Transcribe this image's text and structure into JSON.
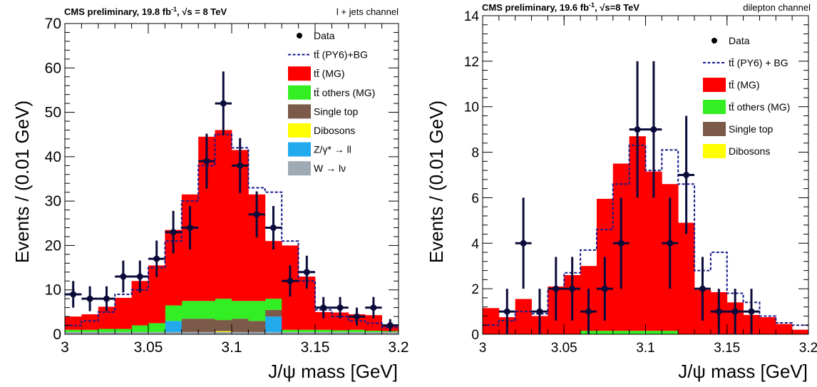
{
  "chart_data": [
    {
      "type": "stacked-histogram",
      "header": "CMS preliminary, 19.8 fb",
      "header_sup": "-1",
      "header_energy": "√s = 8 TeV",
      "channel": "l + jets channel",
      "ylabel": "Events / (0.01 GeV)",
      "xlabel": "J/ψ mass [GeV]",
      "xlim": [
        3.0,
        3.2
      ],
      "ylim": [
        0,
        70
      ],
      "xticks": [
        "3",
        "3.05",
        "3.1",
        "3.15",
        "3.2"
      ],
      "yticks": [
        "0",
        "10",
        "20",
        "30",
        "40",
        "50",
        "60",
        "70"
      ],
      "bin_width": 0.01,
      "bin_start": 3.0,
      "legend": [
        {
          "label": "Data",
          "kind": "marker",
          "color": "#000000"
        },
        {
          "label": "tt̄ (PY6)+BG",
          "kind": "dashed",
          "color": "#1a1a8c"
        },
        {
          "label": "tt̄ (MG)",
          "kind": "box",
          "color": "#ff0000"
        },
        {
          "label": "tt̄ others (MG)",
          "kind": "box",
          "color": "#33ee22"
        },
        {
          "label": "Single top",
          "kind": "box",
          "color": "#7b5a4a"
        },
        {
          "label": "Dibosons",
          "kind": "box",
          "color": "#ffff00"
        },
        {
          "label": "Z/γ* → ll",
          "kind": "box",
          "color": "#22aaee"
        },
        {
          "label": "W → lν",
          "kind": "box",
          "color": "#a0aab4"
        }
      ],
      "stack_series": [
        {
          "name": "W → lν",
          "color": "#a0aab4",
          "values": [
            0.5,
            0.5,
            0.5,
            0.5,
            0.5,
            0.5,
            0.5,
            0.5,
            0.5,
            0.5,
            0.5,
            0.5,
            0.5,
            0.5,
            0.5,
            0.5,
            0.5,
            0.5,
            0.5,
            0.5
          ]
        },
        {
          "name": "Z/γ* → ll",
          "color": "#22aaee",
          "values": [
            0,
            0,
            0,
            0,
            0,
            0,
            2.5,
            0,
            0,
            0,
            0,
            0,
            3.5,
            0,
            0,
            0,
            0,
            0,
            0,
            0
          ]
        },
        {
          "name": "Dibosons",
          "color": "#ffff00",
          "values": [
            0,
            0,
            0,
            0,
            0,
            0,
            0,
            0,
            0,
            0.2,
            0,
            0,
            0,
            0,
            0,
            0,
            0,
            0,
            0,
            0
          ]
        },
        {
          "name": "Single top",
          "color": "#7b5a4a",
          "values": [
            0,
            0,
            0,
            0,
            0,
            0,
            0,
            3,
            3,
            2.5,
            3,
            2.5,
            1.5,
            0,
            0,
            0,
            0,
            0,
            0,
            0
          ]
        },
        {
          "name": "tt̄ others (MG)",
          "color": "#33ee22",
          "values": [
            0.5,
            0.5,
            0.7,
            0.7,
            1.5,
            2,
            3.5,
            4,
            4,
            4.8,
            4,
            4.5,
            2.5,
            0.5,
            0.5,
            0.5,
            0.4,
            0.5,
            0.3,
            0.2
          ]
        },
        {
          "name": "tt̄ (MG)",
          "color": "#ff0000",
          "values": [
            3,
            3.5,
            5,
            7,
            10,
            13,
            17,
            24,
            37,
            38,
            34,
            24,
            13,
            19,
            12,
            4,
            4,
            3.5,
            3.5,
            1.5
          ]
        }
      ],
      "dashed_series": {
        "name": "tt̄ (PY6)+BG",
        "color": "#1a1a8c",
        "values": [
          2,
          3,
          5,
          9,
          10,
          15,
          21,
          30,
          38,
          45,
          42,
          33,
          32,
          21,
          12,
          5.5,
          4,
          3,
          2.5,
          1.5
        ]
      },
      "data_points": {
        "x": [
          3.005,
          3.015,
          3.025,
          3.035,
          3.045,
          3.055,
          3.065,
          3.075,
          3.085,
          3.095,
          3.105,
          3.115,
          3.125,
          3.135,
          3.145,
          3.155,
          3.165,
          3.175,
          3.185,
          3.195
        ],
        "y": [
          9,
          8,
          8,
          13,
          13,
          17,
          23,
          24,
          39,
          52,
          38,
          27,
          24,
          12,
          14,
          6,
          6,
          4,
          6,
          2
        ],
        "yerr": [
          3,
          2.8,
          2.8,
          3.6,
          3.6,
          4.1,
          4.8,
          4.9,
          6.2,
          7.2,
          6.2,
          5.2,
          4.9,
          3.5,
          3.7,
          2.4,
          2.4,
          2,
          2.4,
          1.4
        ]
      }
    },
    {
      "type": "stacked-histogram",
      "header": "CMS preliminary, 19.6 fb",
      "header_sup": "-1",
      "header_energy": "√s=8 TeV",
      "channel": "dilepton channel",
      "ylabel": "Events / (0.01 GeV)",
      "xlabel": "J/ψ mass [GeV]",
      "xlim": [
        3.0,
        3.2
      ],
      "ylim": [
        0,
        14
      ],
      "xticks": [
        "3",
        "3.05",
        "3.1",
        "3.15",
        "3.2"
      ],
      "yticks": [
        "0",
        "2",
        "4",
        "6",
        "8",
        "10",
        "12",
        "14"
      ],
      "bin_width": 0.01,
      "bin_start": 3.0,
      "legend": [
        {
          "label": "Data",
          "kind": "marker",
          "color": "#000000"
        },
        {
          "label": "tt̄ (PY6) + BG",
          "kind": "dashed",
          "color": "#1a1a8c"
        },
        {
          "label": "tt̄ (MG)",
          "kind": "box",
          "color": "#ff0000"
        },
        {
          "label": "tt̄ others (MG)",
          "kind": "box",
          "color": "#33ee22"
        },
        {
          "label": "Single top",
          "kind": "box",
          "color": "#7b5a4a"
        },
        {
          "label": "Dibosons",
          "kind": "box",
          "color": "#ffff00"
        }
      ],
      "stack_series": [
        {
          "name": "Single top",
          "color": "#7b5a4a",
          "values": [
            0,
            0,
            0,
            0,
            0,
            0,
            0,
            0,
            0,
            0,
            0,
            0,
            0,
            0,
            0,
            0,
            0,
            0,
            0,
            0
          ]
        },
        {
          "name": "tt̄ others (MG)",
          "color": "#33ee22",
          "values": [
            0,
            0,
            0,
            0,
            0,
            0,
            0.15,
            0.15,
            0.15,
            0.15,
            0.15,
            0.15,
            0,
            0,
            0,
            0,
            0,
            0,
            0,
            0
          ]
        },
        {
          "name": "tt̄ (MG)",
          "color": "#ff0000",
          "values": [
            1.15,
            0.75,
            1.55,
            0.8,
            2.1,
            2.6,
            2.85,
            5.8,
            7.35,
            8.55,
            7.0,
            6.45,
            4.9,
            1.95,
            1.85,
            1.4,
            0.85,
            0.75,
            0.45,
            0.2
          ]
        }
      ],
      "dashed_series": {
        "name": "tt̄ (PY6) + BG",
        "color": "#1a1a8c",
        "values": [
          0.4,
          0.6,
          1.0,
          0.9,
          2.0,
          2.7,
          3.7,
          4.6,
          6.6,
          8.3,
          7.2,
          8.1,
          6.6,
          2.8,
          3.6,
          1.8,
          1.4,
          0.8,
          0.5,
          0.4
        ]
      },
      "data_points": {
        "x": [
          3.015,
          3.025,
          3.035,
          3.045,
          3.055,
          3.065,
          3.075,
          3.085,
          3.095,
          3.105,
          3.115,
          3.125,
          3.135,
          3.145,
          3.155,
          3.165
        ],
        "y": [
          1,
          4,
          1,
          2,
          2,
          1,
          2,
          4,
          9,
          9,
          4,
          7,
          2,
          1,
          1,
          1
        ],
        "yerr": [
          1,
          2,
          1,
          1.4,
          1.4,
          1,
          1.4,
          2,
          3,
          3,
          2,
          2.6,
          1.4,
          1,
          1,
          1
        ]
      }
    }
  ]
}
